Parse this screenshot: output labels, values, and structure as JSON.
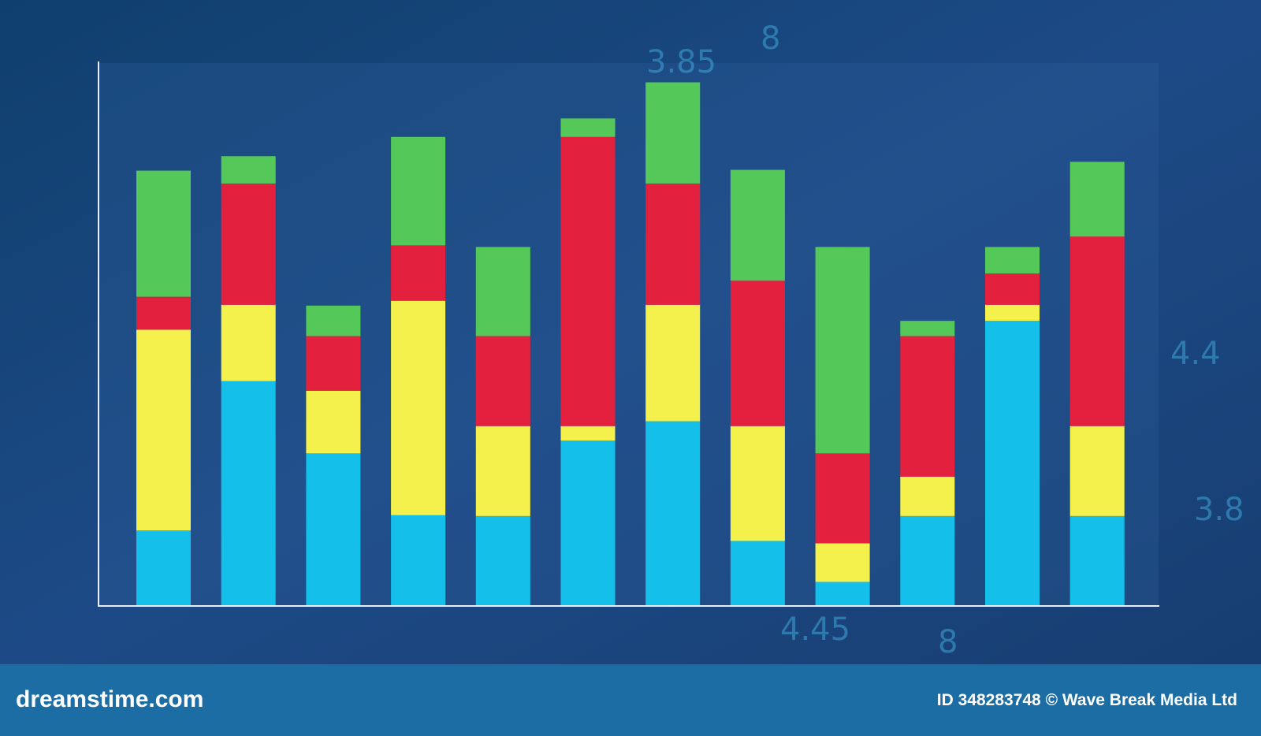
{
  "chart_data": {
    "type": "stacked_bar",
    "categories": [
      null,
      null,
      null,
      null,
      null,
      null,
      null,
      null,
      null,
      null,
      null,
      null
    ],
    "series": [
      {
        "color": "#14c0ea",
        "values": [
          93,
          279,
          189,
          112,
          111,
          205,
          229,
          80,
          29,
          111,
          354,
          111
        ]
      },
      {
        "color": "#f4f04c",
        "values": [
          250,
          95,
          78,
          267,
          112,
          18,
          145,
          143,
          48,
          49,
          20,
          112
        ]
      },
      {
        "color": "#e3213f",
        "values": [
          41,
          151,
          68,
          69,
          112,
          360,
          151,
          181,
          112,
          175,
          39,
          236
        ]
      },
      {
        "color": "#55c85a",
        "values": [
          157,
          34,
          38,
          135,
          111,
          23,
          126,
          138,
          257,
          19,
          33,
          93
        ]
      }
    ],
    "ylim": [
      0,
      675
    ],
    "grid": false
  },
  "background_texts": [
    "3.85",
    "8",
    "4.45",
    "8",
    "4.4",
    "3.8"
  ],
  "footer": {
    "brand": "dreamstime.com",
    "credit": "ID 348283748 © Wave Break Media Ltd"
  }
}
